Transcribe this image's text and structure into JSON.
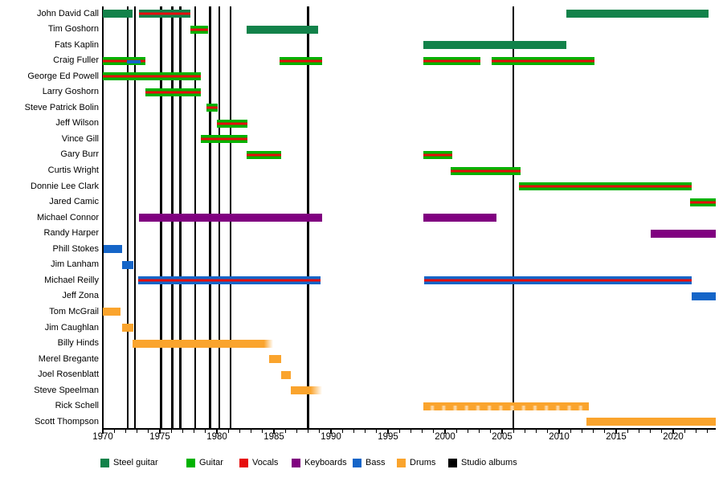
{
  "chart_data": {
    "type": "timeline",
    "x_axis": {
      "tick_labels": [
        1970,
        1975,
        1980,
        1985,
        1990,
        1995,
        2000,
        2005,
        2010,
        2015,
        2020
      ],
      "minor_ticks_every": 1,
      "range": [
        1970,
        2023.7
      ]
    },
    "instruments": {
      "steel": {
        "label": "Steel guitar",
        "color": "#12824a"
      },
      "guitar": {
        "label": "Guitar",
        "color": "#00b200"
      },
      "vocals": {
        "label": "Vocals",
        "color": "#e60d0d"
      },
      "keyboards": {
        "label": "Keyboards",
        "color": "#800080"
      },
      "bass": {
        "label": "Bass",
        "color": "#1565c8"
      },
      "drums": {
        "label": "Drums",
        "color": "#faa42d"
      },
      "albums": {
        "label": "Studio albums",
        "color": "#000000"
      }
    },
    "legend_order": [
      "steel",
      "guitar",
      "vocals",
      "keyboards",
      "bass",
      "drums",
      "albums"
    ],
    "album_years": [
      1972.2,
      1972.8,
      1975.1,
      1976.1,
      1976.8,
      1978.1,
      1979.4,
      1980.2,
      1981.2,
      1988.0,
      2006.0
    ],
    "members": [
      "John David Call",
      "Tim Goshorn",
      "Fats Kaplin",
      "Craig Fuller",
      "George Ed Powell",
      "Larry Goshorn",
      "Steve Patrick Bolin",
      "Jeff Wilson",
      "Vince Gill",
      "Gary Burr",
      "Curtis Wright",
      "Donnie Lee Clark",
      "Jared Camic",
      "Michael Connor",
      "Randy Harper",
      "Phill Stokes",
      "Jim Lanham",
      "Michael Reilly",
      "Jeff Zona",
      "Tom McGrail",
      "Jim Caughlan",
      "Billy Hinds",
      "Merel Bregante",
      "Joel Rosenblatt",
      "Steve Speelman",
      "Rick Schell",
      "Scott Thompson"
    ],
    "bars": [
      {
        "m": 0,
        "start": 1970.0,
        "end": 1972.6,
        "parts": [
          "steel"
        ]
      },
      {
        "m": 0,
        "start": 1973.2,
        "end": 1977.65,
        "parts": [
          "steel",
          "vocals",
          "steel"
        ]
      },
      {
        "m": 0,
        "start": 2010.6,
        "end": 2023.1,
        "parts": [
          "steel"
        ]
      },
      {
        "m": 1,
        "start": 1977.65,
        "end": 1979.2,
        "parts": [
          "guitar",
          "vocals",
          "guitar"
        ]
      },
      {
        "m": 1,
        "start": 1982.6,
        "end": 1988.9,
        "parts": [
          "steel"
        ]
      },
      {
        "m": 2,
        "start": 1998.1,
        "end": 2010.6,
        "parts": [
          "steel"
        ]
      },
      {
        "m": 3,
        "start": 1970.0,
        "end": 1973.7,
        "parts": [
          "guitar",
          "vocals",
          "guitar"
        ]
      },
      {
        "m": 3,
        "start": 1972.1,
        "end": 1973.3,
        "parts": [
          "bass"
        ],
        "overlay": true
      },
      {
        "m": 3,
        "start": 1985.5,
        "end": 1989.2,
        "parts": [
          "guitar",
          "vocals",
          "guitar"
        ]
      },
      {
        "m": 3,
        "start": 1998.1,
        "end": 2003.1,
        "parts": [
          "guitar",
          "vocals",
          "guitar"
        ]
      },
      {
        "m": 3,
        "start": 2004.1,
        "end": 2013.1,
        "parts": [
          "guitar",
          "vocals",
          "guitar"
        ]
      },
      {
        "m": 4,
        "start": 1970.0,
        "end": 1978.6,
        "parts": [
          "guitar",
          "vocals",
          "guitar"
        ]
      },
      {
        "m": 5,
        "start": 1973.7,
        "end": 1978.6,
        "parts": [
          "guitar",
          "vocals",
          "guitar"
        ]
      },
      {
        "m": 6,
        "start": 1979.1,
        "end": 1980.1,
        "parts": [
          "guitar",
          "vocals",
          "guitar"
        ]
      },
      {
        "m": 7,
        "start": 1980.0,
        "end": 1982.65,
        "parts": [
          "guitar",
          "vocals",
          "guitar"
        ]
      },
      {
        "m": 8,
        "start": 1978.6,
        "end": 1982.65,
        "parts": [
          "guitar",
          "vocals",
          "guitar"
        ]
      },
      {
        "m": 9,
        "start": 1982.6,
        "end": 1985.6,
        "parts": [
          "guitar",
          "vocals",
          "guitar"
        ]
      },
      {
        "m": 9,
        "start": 1998.1,
        "end": 2000.6,
        "parts": [
          "guitar",
          "vocals",
          "guitar"
        ]
      },
      {
        "m": 10,
        "start": 2000.5,
        "end": 2006.6,
        "parts": [
          "guitar",
          "vocals",
          "guitar"
        ]
      },
      {
        "m": 11,
        "start": 2006.5,
        "end": 2021.6,
        "parts": [
          "guitar",
          "vocals",
          "guitar"
        ]
      },
      {
        "m": 12,
        "start": 2021.5,
        "end": 2023.7,
        "parts": [
          "guitar",
          "vocals",
          "guitar"
        ]
      },
      {
        "m": 13,
        "start": 1973.2,
        "end": 1989.2,
        "parts": [
          "keyboards"
        ]
      },
      {
        "m": 13,
        "start": 1998.1,
        "end": 2004.5,
        "parts": [
          "keyboards"
        ]
      },
      {
        "m": 14,
        "start": 2018.0,
        "end": 2023.7,
        "parts": [
          "keyboards"
        ]
      },
      {
        "m": 15,
        "start": 1970.1,
        "end": 1971.7,
        "parts": [
          "bass"
        ]
      },
      {
        "m": 16,
        "start": 1971.7,
        "end": 1972.7,
        "parts": [
          "bass"
        ]
      },
      {
        "m": 17,
        "start": 1973.1,
        "end": 1989.1,
        "parts": [
          "bass",
          "vocals",
          "bass"
        ]
      },
      {
        "m": 17,
        "start": 1998.2,
        "end": 2021.6,
        "parts": [
          "bass",
          "vocals",
          "bass"
        ]
      },
      {
        "m": 18,
        "start": 2021.6,
        "end": 2023.7,
        "parts": [
          "bass"
        ]
      },
      {
        "m": 19,
        "start": 1970.0,
        "end": 1971.55,
        "parts": [
          "drums"
        ]
      },
      {
        "m": 20,
        "start": 1971.7,
        "end": 1972.7,
        "parts": [
          "drums"
        ]
      },
      {
        "m": 21,
        "start": 1972.6,
        "end": 1984.9,
        "parts": [
          "drums"
        ],
        "fade_start": 1984.1
      },
      {
        "m": 22,
        "start": 1984.6,
        "end": 1985.6,
        "parts": [
          "drums"
        ]
      },
      {
        "m": 23,
        "start": 1985.6,
        "end": 1986.5,
        "parts": [
          "drums"
        ]
      },
      {
        "m": 24,
        "start": 1986.5,
        "end": 1989.2,
        "parts": [
          "drums"
        ],
        "fade_start": 1988.2
      },
      {
        "m": 25,
        "start": 1998.1,
        "end": 2012.6,
        "parts": [
          "drums"
        ],
        "texture": "scallop"
      },
      {
        "m": 26,
        "start": 2012.4,
        "end": 2023.7,
        "parts": [
          "drums"
        ]
      }
    ]
  }
}
